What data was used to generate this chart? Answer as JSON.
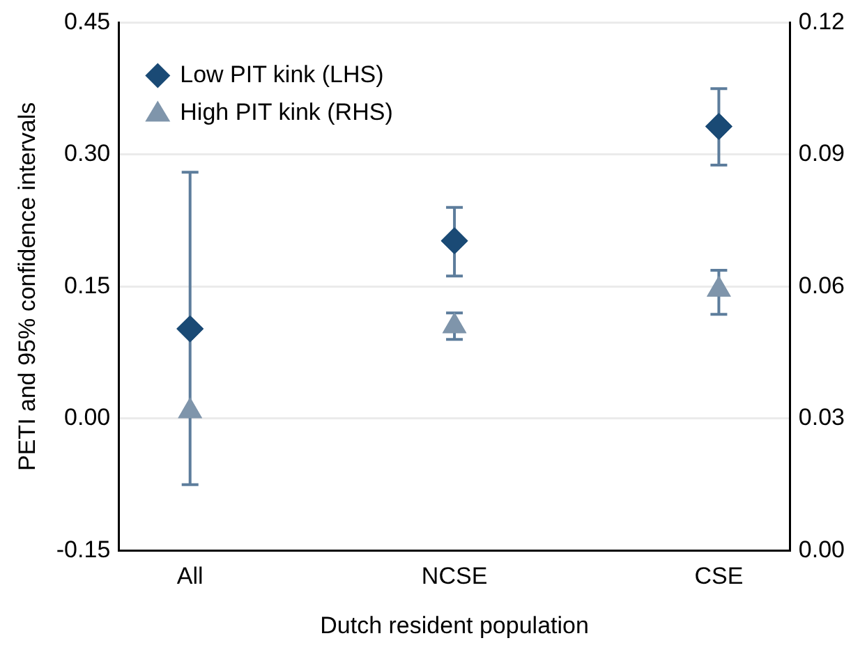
{
  "chart_data": {
    "type": "scatter",
    "xlabel": "Dutch resident population",
    "ylabel": "PETI and 95% confidence intervals",
    "categories": [
      "All",
      "NCSE",
      "CSE"
    ],
    "series": [
      {
        "name": "Low PIT kink (LHS)",
        "color": "#1a4a75",
        "marker": "diamond",
        "values": [
          0.102,
          0.202,
          0.332
        ],
        "errors": [
          [
            -0.075,
            0.28
          ],
          [
            0.162,
            0.24
          ],
          [
            0.288,
            0.375
          ]
        ]
      },
      {
        "name": "High PIT kink (RHS)",
        "color": "#7f95ab",
        "marker": "triangle",
        "axis": "y2",
        "values": [
          0.0317,
          0.051,
          0.0593
        ],
        "errors": [
          null,
          [
            0.048,
            0.054
          ],
          [
            0.0537,
            0.0637
          ]
        ]
      }
    ],
    "ylim": [
      -0.15,
      0.45
    ],
    "yticks": [
      {
        "value": -0.15,
        "label": "-0.15"
      },
      {
        "value": 0,
        "label": "0.00"
      },
      {
        "value": 0.15,
        "label": "0.15"
      },
      {
        "value": 0.3,
        "label": "0.30"
      },
      {
        "value": 0.45,
        "label": "0.45"
      }
    ],
    "y2lim": [
      0,
      0.12
    ],
    "y2ticks": [
      {
        "value": 0,
        "label": "0.00"
      },
      {
        "value": 0.03,
        "label": "0.03"
      },
      {
        "value": 0.06,
        "label": "0.06"
      },
      {
        "value": 0.09,
        "label": "0.09"
      },
      {
        "value": 0.12,
        "label": "0.12"
      }
    ],
    "grid": "y",
    "legend": "top left"
  }
}
